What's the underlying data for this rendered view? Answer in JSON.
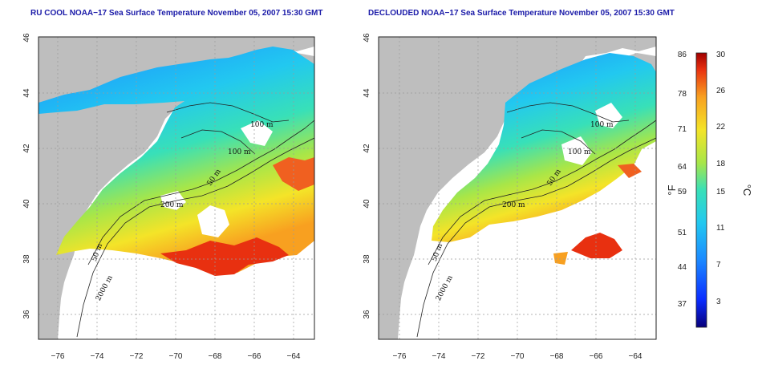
{
  "maps": [
    {
      "title": "RU COOL NOAA−17 Sea Surface Temperature November 05, 2007 15:30 GMT",
      "x_ticks": [
        "−76",
        "−74",
        "−72",
        "−70",
        "−68",
        "−66",
        "−64"
      ],
      "y_ticks": [
        "36",
        "38",
        "40",
        "42",
        "44",
        "46"
      ],
      "contour_labels": [
        "100 m",
        "100 m",
        "50 m",
        "200 m",
        "50 m",
        "2000 m"
      ]
    },
    {
      "title": "DECLOUDED NOAA−17 Sea Surface Temperature November 05, 2007 15:30 GMT",
      "x_ticks": [
        "−76",
        "−74",
        "−72",
        "−70",
        "−68",
        "−66",
        "−64"
      ],
      "y_ticks": [
        "36",
        "38",
        "40",
        "42",
        "44",
        "46"
      ],
      "contour_labels": [
        "100 m",
        "100 m",
        "50 m",
        "200 m",
        "50 m",
        "2000 m"
      ]
    }
  ],
  "colorbar": {
    "fahrenheit_ticks": [
      "86",
      "78",
      "71",
      "64",
      "59",
      "51",
      "44",
      "37"
    ],
    "celsius_ticks": [
      "30",
      "26",
      "22",
      "18",
      "15",
      "11",
      "7",
      "3"
    ],
    "unit_f": "°F",
    "unit_c": "°C",
    "colors": [
      "#08007a",
      "#0a2cff",
      "#1c8cff",
      "#22c8f0",
      "#38e0b8",
      "#a8e648",
      "#f4e428",
      "#f8a020",
      "#e83010",
      "#a00000"
    ]
  },
  "colors": {
    "land": "#bebebe",
    "title": "#1a1aa8"
  }
}
